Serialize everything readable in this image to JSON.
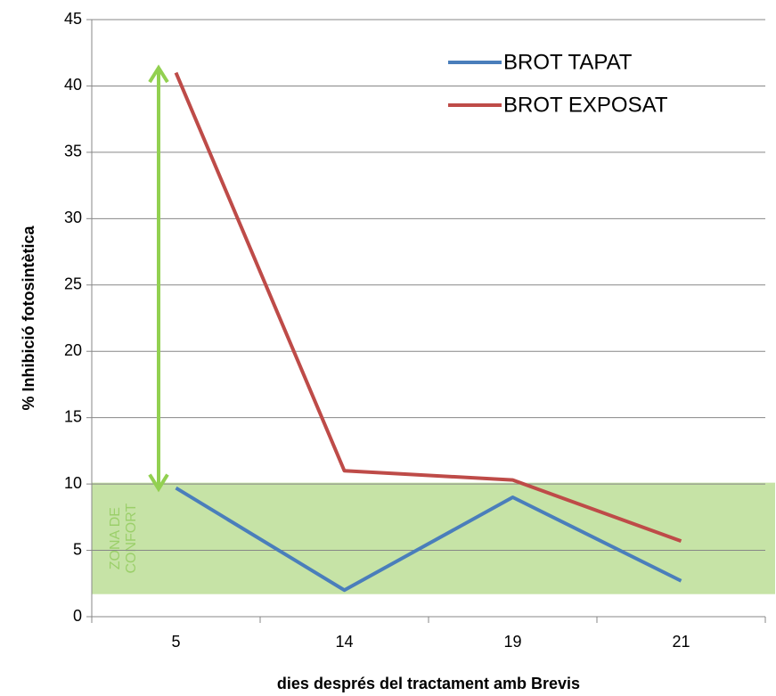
{
  "chart_data": {
    "type": "line",
    "x_label": "dies després del tractament amb Brevis",
    "y_label": "% Inhibició fotosintètica",
    "categories": [
      "5",
      "14",
      "19",
      "21"
    ],
    "series": [
      {
        "name": "BROT TAPAT",
        "color": "#4a7ebb",
        "values": [
          9.7,
          2.0,
          9.0,
          2.7
        ]
      },
      {
        "name": "BROT EXPOSAT",
        "color": "#be4b48",
        "values": [
          41.0,
          11.0,
          10.3,
          5.7
        ]
      }
    ],
    "ylim": [
      0,
      45
    ],
    "yticks": [
      0,
      5,
      10,
      15,
      20,
      25,
      30,
      35,
      40,
      45
    ],
    "grid": true,
    "legend": "upper right",
    "zone": {
      "label_lines": [
        "ZONA DE",
        "CONFORT"
      ],
      "range": [
        1.7,
        10.1
      ],
      "color": "#c6e3a6",
      "text_color": "#9bcf6a"
    },
    "arrow": {
      "range": [
        9.5,
        41.5
      ],
      "color": "#92d050"
    }
  }
}
